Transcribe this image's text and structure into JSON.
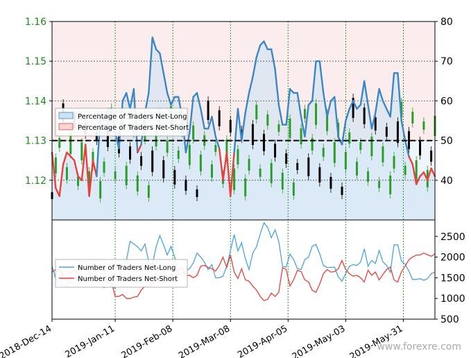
{
  "watermark": "www.forexre.com",
  "colors": {
    "long": "#3a87c4",
    "short": "#e8403a",
    "long_fill": "#cfe2f3",
    "short_fill": "#f7d6d6",
    "price_up": "#2a9d2a",
    "price_down": "#000000",
    "left_axis": "#1a8c1a"
  },
  "chart_data": [
    {
      "type": "line",
      "panel": "top",
      "x_dates": [
        "2018-Dec-14",
        "2019-Jan-11",
        "2019-Feb-08",
        "2019-Mar-08",
        "2019-Apr-05",
        "2019-May-03",
        "2019-May-31"
      ],
      "left_axis": {
        "ticks": [
          "1.16",
          "1.15",
          "1.14",
          "1.13",
          "1.12"
        ],
        "range": [
          1.11,
          1.16
        ]
      },
      "right_axis": {
        "ticks": [
          "80",
          "70",
          "60",
          "50",
          "40"
        ],
        "range": [
          30,
          80
        ]
      },
      "reference_line": 50,
      "legend": [
        "Percentage of Traders Net-Long",
        "Percentage of Traders Net-Short"
      ],
      "legend_position": "upper-left",
      "sentiment_pct": [
        47,
        38,
        36,
        44,
        47,
        46,
        45,
        41,
        40,
        49,
        36,
        45,
        41,
        56,
        55,
        58,
        58,
        52,
        48,
        60,
        62,
        58,
        63,
        47,
        49,
        57,
        62,
        76,
        73,
        72,
        67,
        62,
        59,
        61,
        61,
        56,
        47,
        52,
        61,
        62,
        58,
        53,
        53,
        56,
        51,
        48,
        40,
        47,
        36,
        47,
        58,
        50,
        57,
        62,
        66,
        71,
        74,
        75,
        73,
        73,
        68,
        59,
        54,
        54,
        63,
        62,
        62,
        56,
        51,
        59,
        60,
        70,
        70,
        62,
        56,
        60,
        61,
        51,
        49,
        55,
        58,
        60,
        58,
        59,
        65,
        59,
        53,
        57,
        63,
        60,
        58,
        56,
        67,
        67,
        55,
        50,
        46,
        44,
        39,
        41,
        42,
        40,
        43,
        41
      ]
    },
    {
      "type": "line",
      "panel": "bottom",
      "right_axis": {
        "ticks": [
          "2500",
          "2000",
          "1500",
          "1000",
          "500"
        ],
        "range": [
          500,
          2900
        ]
      },
      "legend": [
        "Number of Traders Net-Long",
        "Number of Traders Net-Short"
      ],
      "legend_position": "center-left",
      "series": [
        {
          "name": "Number of Traders Net-Long",
          "values": [
            1780,
            1480,
            1520,
            1320,
            1300,
            1500,
            1550,
            1700,
            1880,
            1900,
            1620,
            1850,
            1480,
            1360,
            1260,
            1400,
            1280,
            1250,
            1510,
            1680,
            1920,
            2380,
            2320,
            2250,
            2150,
            2320,
            1900,
            1820,
            2250,
            2520,
            2300,
            2050,
            2260,
            2000,
            1580,
            1620,
            1680,
            1720,
            1860,
            2100,
            2000,
            1880,
            1700,
            1820,
            1500,
            1500,
            1540,
            1780,
            2150,
            2550,
            2150,
            2350,
            1960,
            1700,
            2100,
            2250,
            2560,
            2830,
            2720,
            2470,
            2660,
            2380,
            1780,
            1760,
            2080,
            1940,
            1720,
            1700,
            1940,
            2000,
            2260,
            2310,
            2080,
            1800,
            1750,
            1750,
            1760,
            1520,
            1420,
            1600,
            1780,
            1820,
            1800,
            1880,
            2200,
            1780,
            1920,
            1850,
            2160,
            1890,
            1800,
            1630,
            2300,
            2300,
            1900,
            1830,
            1660,
            1460,
            1460,
            1480,
            1440,
            1480,
            1600,
            1640
          ]
        },
        {
          "name": "Number of Traders Net-Short",
          "values": [
            1640,
            1700,
            1720,
            1560,
            1450,
            1620,
            1700,
            1620,
            1480,
            1460,
            1500,
            1620,
            1780,
            1800,
            1720,
            1380,
            1400,
            1050,
            1050,
            1100,
            1000,
            1000,
            1030,
            1050,
            1200,
            1300,
            1300,
            1350,
            1480,
            1500,
            1380,
            1420,
            1580,
            1480,
            1680,
            1740,
            1550,
            1560,
            1500,
            1560,
            1780,
            1800,
            1750,
            1720,
            1660,
            1800,
            2000,
            1750,
            2050,
            1640,
            1480,
            1720,
            1450,
            1420,
            1300,
            1200,
            1050,
            950,
            980,
            1130,
            1050,
            1150,
            1750,
            1700,
            1300,
            1450,
            1680,
            1650,
            1450,
            1400,
            1200,
            1150,
            1350,
            1600,
            1700,
            1640,
            1650,
            1720,
            1920,
            1700,
            1600,
            1540,
            1560,
            1500,
            1400,
            1680,
            1560,
            1640,
            1450,
            1580,
            1700,
            1760,
            1450,
            1400,
            1650,
            1780,
            1940,
            2000,
            2050,
            2050,
            2100,
            2060,
            2020,
            2080
          ]
        }
      ]
    }
  ]
}
